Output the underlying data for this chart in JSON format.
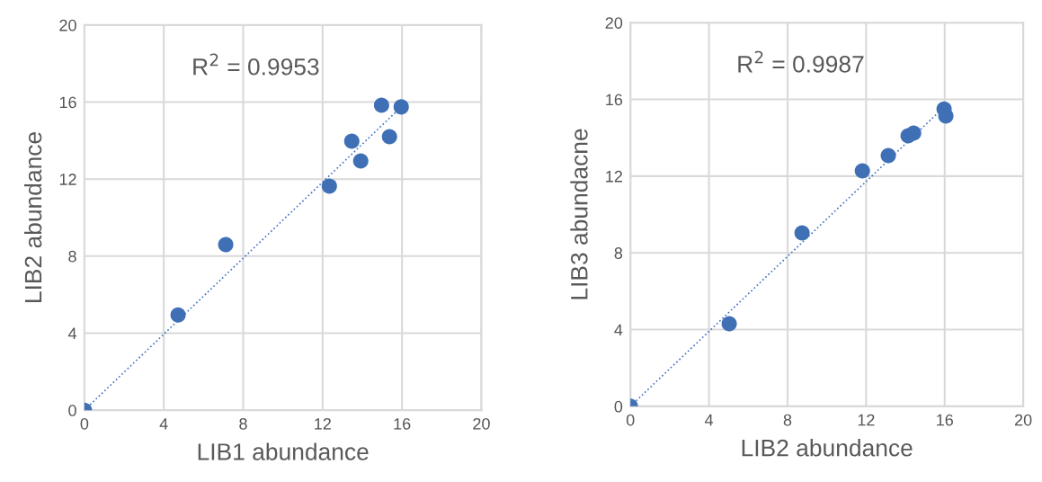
{
  "chart_data": [
    {
      "type": "scatter",
      "xlabel": "LIB1 abundance",
      "ylabel": "LIB2 abundance",
      "annotations": [
        "R$^{2}$ = 0.9953"
      ],
      "xlim": [
        0,
        20
      ],
      "ylim": [
        0,
        20
      ],
      "xticks": [
        0,
        4,
        8,
        12,
        16,
        20
      ],
      "yticks": [
        0,
        4,
        8,
        12,
        16,
        20
      ],
      "grid": true,
      "series": [
        {
          "marker": "circle",
          "color": "#3f6fb5",
          "x": [
            0,
            4.72,
            7.12,
            12.34,
            13.47,
            13.92,
            14.97,
            15.37,
            15.96
          ],
          "values": [
            0,
            4.95,
            8.6,
            11.64,
            13.97,
            12.94,
            15.84,
            14.2,
            15.75
          ]
        },
        {
          "type": "line",
          "color": "#4472c4",
          "line_style": "dotted",
          "x": [
            0,
            16.05
          ],
          "values": [
            0,
            15.84
          ]
        }
      ]
    },
    {
      "type": "scatter",
      "xlabel": "LIB2 abundance",
      "ylabel": "LIB3 abundacne",
      "annotations": [
        "R$^{2}$ = 0.9987"
      ],
      "xlim": [
        0,
        20
      ],
      "ylim": [
        0,
        20
      ],
      "xticks": [
        0,
        4,
        8,
        12,
        16,
        20
      ],
      "yticks": [
        0,
        4,
        8,
        12,
        16,
        20
      ],
      "grid": true,
      "series": [
        {
          "marker": "circle",
          "color": "#3f6fb5",
          "x": [
            0,
            5.03,
            8.74,
            11.81,
            13.13,
            14.14,
            14.42,
            15.97,
            16.06
          ],
          "values": [
            0,
            4.31,
            9.04,
            12.27,
            13.07,
            14.1,
            14.24,
            15.5,
            15.13
          ]
        },
        {
          "type": "line",
          "color": "#4472c4",
          "line_style": "dotted",
          "x": [
            0,
            15.97
          ],
          "values": [
            0,
            15.6
          ]
        }
      ]
    }
  ]
}
